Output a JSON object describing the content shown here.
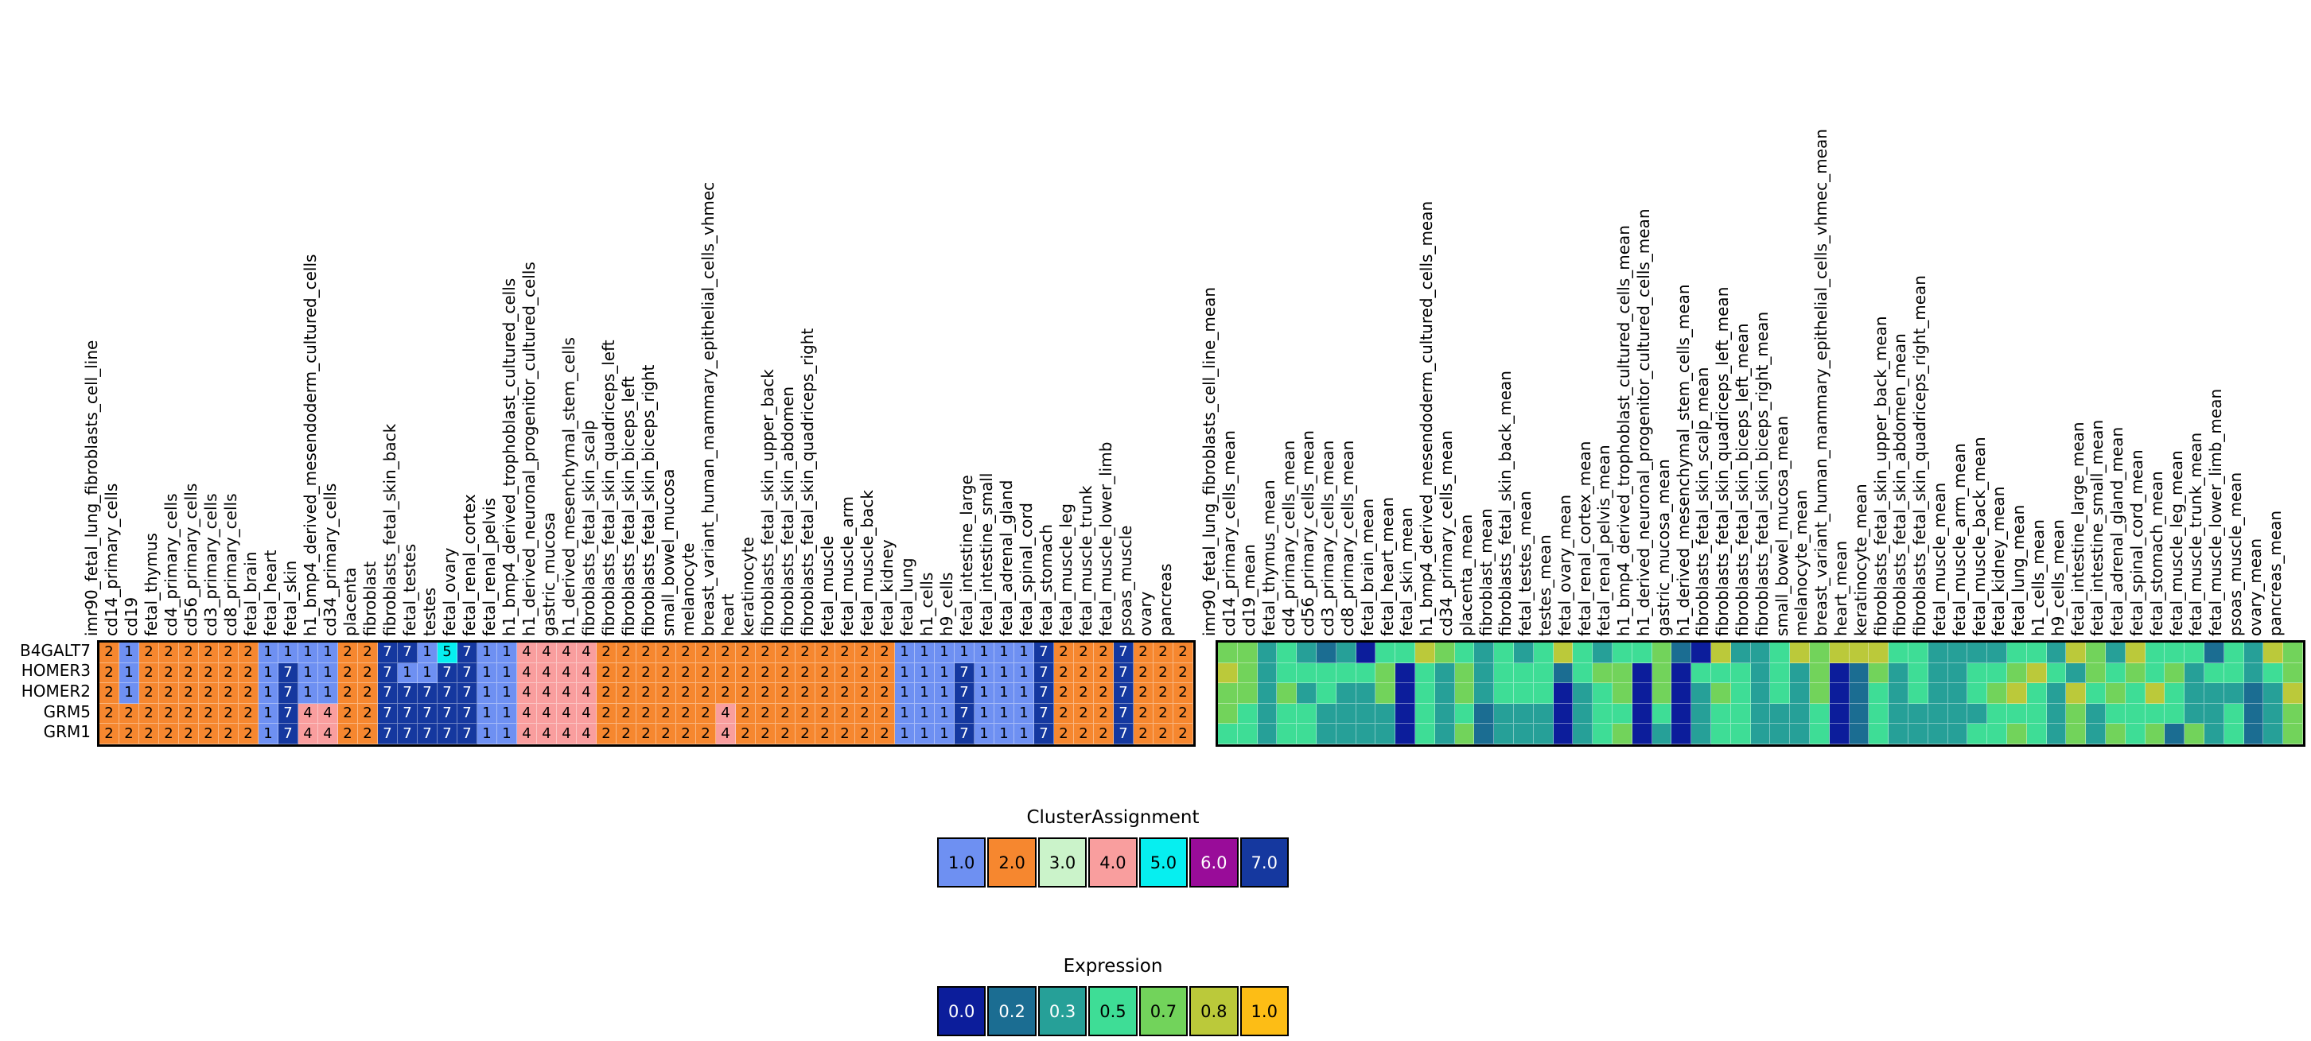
{
  "figure": {
    "description": "Gene by tissue clustered heatmaps",
    "gene_rows": [
      "B4GALT7",
      "HOMER3",
      "HOMER2",
      "GRM5",
      "GRM1"
    ]
  },
  "chart_data": [
    {
      "type": "heatmap",
      "name": "ClusterAssignment",
      "rows": [
        "B4GALT7",
        "HOMER3",
        "HOMER2",
        "GRM5",
        "GRM1"
      ],
      "columns": [
        "imr90_fetal_lung_fibroblasts_cell_line",
        "cd14_primary_cells",
        "cd19",
        "fetal_thymus",
        "cd4_primary_cells",
        "cd56_primary_cells",
        "cd3_primary_cells",
        "cd8_primary_cells",
        "fetal_brain",
        "fetal_heart",
        "fetal_skin",
        "h1_bmp4_derived_mesendoderm_cultured_cells",
        "cd34_primary_cells",
        "placenta",
        "fibroblast",
        "fibroblasts_fetal_skin_back",
        "fetal_testes",
        "testes",
        "fetal_ovary",
        "fetal_renal_cortex",
        "fetal_renal_pelvis",
        "h1_bmp4_derived_trophoblast_cultured_cells",
        "h1_derived_neuronal_progenitor_cultured_cells",
        "gastric_mucosa",
        "h1_derived_mesenchymal_stem_cells",
        "fibroblasts_fetal_skin_scalp",
        "fibroblasts_fetal_skin_quadriceps_left",
        "fibroblasts_fetal_skin_biceps_left",
        "fibroblasts_fetal_skin_biceps_right",
        "small_bowel_mucosa",
        "melanocyte",
        "breast_variant_human_mammary_epithelial_cells_vhmec",
        "heart",
        "keratinocyte",
        "fibroblasts_fetal_skin_upper_back",
        "fibroblasts_fetal_skin_abdomen",
        "fibroblasts_fetal_skin_quadriceps_right",
        "fetal_muscle",
        "fetal_muscle_arm",
        "fetal_muscle_back",
        "fetal_kidney",
        "fetal_lung",
        "h1_cells",
        "h9_cells",
        "fetal_intestine_large",
        "fetal_intestine_small",
        "fetal_adrenal_gland",
        "fetal_spinal_cord",
        "fetal_stomach",
        "fetal_muscle_leg",
        "fetal_muscle_trunk",
        "fetal_muscle_lower_limb",
        "psoas_muscle",
        "ovary",
        "pancreas"
      ],
      "values": [
        [
          2,
          1,
          2,
          2,
          2,
          2,
          2,
          2,
          1,
          1,
          1,
          1,
          2,
          2,
          7,
          7,
          1,
          5,
          7,
          1,
          1,
          4,
          4,
          4,
          4,
          2,
          2,
          2,
          2,
          2,
          2,
          2,
          2,
          2,
          2,
          2,
          2,
          2,
          2,
          2,
          1,
          1,
          1,
          1,
          1,
          1,
          1,
          7,
          2,
          2,
          2,
          7,
          2,
          2,
          2
        ],
        [
          2,
          1,
          2,
          2,
          2,
          2,
          2,
          2,
          1,
          7,
          1,
          1,
          2,
          2,
          7,
          1,
          1,
          7,
          7,
          1,
          1,
          4,
          4,
          4,
          4,
          2,
          2,
          2,
          2,
          2,
          2,
          2,
          2,
          2,
          2,
          2,
          2,
          2,
          2,
          2,
          1,
          1,
          1,
          7,
          1,
          1,
          1,
          7,
          2,
          2,
          2,
          7,
          2,
          2,
          2
        ],
        [
          2,
          1,
          2,
          2,
          2,
          2,
          2,
          2,
          1,
          7,
          1,
          1,
          2,
          2,
          7,
          7,
          7,
          7,
          7,
          1,
          1,
          4,
          4,
          4,
          4,
          2,
          2,
          2,
          2,
          2,
          2,
          2,
          2,
          2,
          2,
          2,
          2,
          2,
          2,
          2,
          1,
          1,
          1,
          7,
          1,
          1,
          1,
          7,
          2,
          2,
          2,
          7,
          2,
          2,
          2
        ],
        [
          2,
          2,
          2,
          2,
          2,
          2,
          2,
          2,
          1,
          7,
          4,
          4,
          2,
          2,
          7,
          7,
          7,
          7,
          7,
          1,
          1,
          4,
          4,
          4,
          4,
          2,
          2,
          2,
          2,
          2,
          2,
          4,
          2,
          2,
          2,
          2,
          2,
          2,
          2,
          2,
          1,
          1,
          1,
          7,
          1,
          1,
          1,
          7,
          2,
          2,
          2,
          7,
          2,
          2,
          2
        ],
        [
          2,
          2,
          2,
          2,
          2,
          2,
          2,
          2,
          1,
          7,
          4,
          4,
          2,
          2,
          7,
          7,
          7,
          7,
          7,
          1,
          1,
          4,
          4,
          4,
          4,
          2,
          2,
          2,
          2,
          2,
          2,
          4,
          2,
          2,
          2,
          2,
          2,
          2,
          2,
          2,
          1,
          1,
          1,
          7,
          1,
          1,
          1,
          7,
          2,
          2,
          2,
          7,
          2,
          2,
          2
        ]
      ],
      "value_colors": {
        "1": "#6e90f2",
        "2": "#f6872f",
        "3": "#cbf3ca",
        "4": "#f99e9e",
        "5": "#06eff0",
        "6": "#990c99",
        "7": "#15389f"
      },
      "value_text_colors": {
        "1": "#000000",
        "2": "#000000",
        "3": "#000000",
        "4": "#000000",
        "5": "#000000",
        "6": "#ffffff",
        "7": "#ffffff"
      },
      "show_cell_text": true,
      "legend": {
        "title": "ClusterAssignment",
        "entries": [
          {
            "label": "1.0",
            "color": "#6e90f2",
            "text_color": "#000000"
          },
          {
            "label": "2.0",
            "color": "#f6872f",
            "text_color": "#000000"
          },
          {
            "label": "3.0",
            "color": "#cbf3ca",
            "text_color": "#000000"
          },
          {
            "label": "4.0",
            "color": "#f99e9e",
            "text_color": "#000000"
          },
          {
            "label": "5.0",
            "color": "#06eff0",
            "text_color": "#000000"
          },
          {
            "label": "6.0",
            "color": "#990c99",
            "text_color": "#ffffff"
          },
          {
            "label": "7.0",
            "color": "#15389f",
            "text_color": "#ffffff"
          }
        ]
      }
    },
    {
      "type": "heatmap",
      "name": "Expression",
      "rows": [
        "B4GALT7",
        "HOMER3",
        "HOMER2",
        "GRM5",
        "GRM1"
      ],
      "columns": [
        "imr90_fetal_lung_fibroblasts_cell_line_mean",
        "cd14_primary_cells_mean",
        "cd19_mean",
        "fetal_thymus_mean",
        "cd4_primary_cells_mean",
        "cd56_primary_cells_mean",
        "cd3_primary_cells_mean",
        "cd8_primary_cells_mean",
        "fetal_brain_mean",
        "fetal_heart_mean",
        "fetal_skin_mean",
        "h1_bmp4_derived_mesendoderm_cultured_cells_mean",
        "cd34_primary_cells_mean",
        "placenta_mean",
        "fibroblast_mean",
        "fibroblasts_fetal_skin_back_mean",
        "fetal_testes_mean",
        "testes_mean",
        "fetal_ovary_mean",
        "fetal_renal_cortex_mean",
        "fetal_renal_pelvis_mean",
        "h1_bmp4_derived_trophoblast_cultured_cells_mean",
        "h1_derived_neuronal_progenitor_cultured_cells_mean",
        "gastric_mucosa_mean",
        "h1_derived_mesenchymal_stem_cells_mean",
        "fibroblasts_fetal_skin_scalp_mean",
        "fibroblasts_fetal_skin_quadriceps_left_mean",
        "fibroblasts_fetal_skin_biceps_left_mean",
        "fibroblasts_fetal_skin_biceps_right_mean",
        "small_bowel_mucosa_mean",
        "melanocyte_mean",
        "breast_variant_human_mammary_epithelial_cells_vhmec_mean",
        "heart_mean",
        "keratinocyte_mean",
        "fibroblasts_fetal_skin_upper_back_mean",
        "fibroblasts_fetal_skin_abdomen_mean",
        "fibroblasts_fetal_skin_quadriceps_right_mean",
        "fetal_muscle_mean",
        "fetal_muscle_arm_mean",
        "fetal_muscle_back_mean",
        "fetal_kidney_mean",
        "fetal_lung_mean",
        "h1_cells_mean",
        "h9_cells_mean",
        "fetal_intestine_large_mean",
        "fetal_intestine_small_mean",
        "fetal_adrenal_gland_mean",
        "fetal_spinal_cord_mean",
        "fetal_stomach_mean",
        "fetal_muscle_leg_mean",
        "fetal_muscle_trunk_mean",
        "fetal_muscle_lower_limb_mean",
        "psoas_muscle_mean",
        "ovary_mean",
        "pancreas_mean"
      ],
      "values": [
        [
          0.7,
          0.7,
          0.3,
          0.5,
          0.3,
          0.2,
          0.3,
          0.0,
          0.5,
          0.5,
          0.8,
          0.7,
          0.5,
          0.3,
          0.5,
          0.3,
          0.5,
          0.8,
          0.5,
          0.3,
          0.5,
          0.5,
          0.7,
          0.2,
          0.0,
          0.8,
          0.3,
          0.3,
          0.5,
          0.8,
          0.7,
          0.8,
          0.8,
          0.8,
          0.5,
          0.5,
          0.3,
          0.3,
          0.3,
          0.3,
          0.5,
          0.5,
          0.3,
          0.8,
          0.7,
          0.3,
          0.8,
          0.5,
          0.5,
          0.5,
          0.2,
          0.5,
          0.3,
          0.8,
          0.7
        ],
        [
          0.8,
          0.7,
          0.3,
          0.5,
          0.5,
          0.5,
          0.5,
          0.5,
          0.7,
          0.0,
          0.5,
          0.3,
          0.7,
          0.3,
          0.5,
          0.5,
          0.5,
          0.2,
          0.5,
          0.7,
          0.7,
          0.0,
          0.7,
          0.0,
          0.5,
          0.5,
          0.5,
          0.3,
          0.5,
          0.3,
          0.7,
          0.0,
          0.2,
          0.7,
          0.3,
          0.5,
          0.3,
          0.3,
          0.5,
          0.5,
          0.7,
          0.8,
          0.5,
          0.3,
          0.7,
          0.5,
          0.7,
          0.5,
          0.7,
          0.3,
          0.5,
          0.5,
          0.3,
          0.5,
          0.7
        ],
        [
          0.7,
          0.7,
          0.3,
          0.7,
          0.3,
          0.5,
          0.3,
          0.3,
          0.7,
          0.0,
          0.5,
          0.3,
          0.7,
          0.3,
          0.5,
          0.5,
          0.5,
          0.0,
          0.3,
          0.5,
          0.7,
          0.0,
          0.7,
          0.0,
          0.3,
          0.7,
          0.5,
          0.3,
          0.5,
          0.3,
          0.7,
          0.0,
          0.2,
          0.5,
          0.3,
          0.5,
          0.3,
          0.3,
          0.5,
          0.7,
          0.8,
          0.5,
          0.3,
          0.8,
          0.5,
          0.7,
          0.5,
          0.8,
          0.5,
          0.3,
          0.3,
          0.3,
          0.2,
          0.3,
          0.8
        ],
        [
          0.7,
          0.5,
          0.3,
          0.5,
          0.5,
          0.3,
          0.3,
          0.3,
          0.3,
          0.0,
          0.5,
          0.3,
          0.5,
          0.2,
          0.3,
          0.3,
          0.3,
          0.0,
          0.3,
          0.5,
          0.5,
          0.0,
          0.5,
          0.0,
          0.3,
          0.5,
          0.5,
          0.3,
          0.3,
          0.3,
          0.5,
          0.0,
          0.2,
          0.5,
          0.3,
          0.3,
          0.3,
          0.3,
          0.3,
          0.5,
          0.5,
          0.5,
          0.3,
          0.7,
          0.3,
          0.5,
          0.5,
          0.5,
          0.5,
          0.3,
          0.3,
          0.5,
          0.2,
          0.3,
          0.7
        ],
        [
          0.5,
          0.5,
          0.3,
          0.5,
          0.5,
          0.3,
          0.3,
          0.3,
          0.3,
          0.0,
          0.5,
          0.3,
          0.7,
          0.2,
          0.3,
          0.3,
          0.3,
          0.0,
          0.3,
          0.5,
          0.7,
          0.0,
          0.3,
          0.0,
          0.3,
          0.5,
          0.5,
          0.3,
          0.3,
          0.3,
          0.5,
          0.0,
          0.2,
          0.5,
          0.3,
          0.3,
          0.3,
          0.3,
          0.5,
          0.5,
          0.7,
          0.5,
          0.3,
          0.7,
          0.3,
          0.7,
          0.5,
          0.7,
          0.2,
          0.7,
          0.3,
          0.5,
          0.2,
          0.3,
          0.7
        ]
      ],
      "value_colors": {
        "0": "#0c1d9b",
        "0.2": "#1b6d92",
        "0.3": "#26a098",
        "0.5": "#3edd96",
        "0.7": "#72d35b",
        "0.8": "#bbc93a",
        "1": "#fdbd15"
      },
      "show_cell_text": false,
      "legend": {
        "title": "Expression",
        "entries": [
          {
            "label": "0.0",
            "color": "#0c1d9b",
            "text_color": "#ffffff"
          },
          {
            "label": "0.2",
            "color": "#1b6d92",
            "text_color": "#ffffff"
          },
          {
            "label": "0.3",
            "color": "#26a098",
            "text_color": "#ffffff"
          },
          {
            "label": "0.5",
            "color": "#3edd96",
            "text_color": "#000000"
          },
          {
            "label": "0.7",
            "color": "#72d35b",
            "text_color": "#000000"
          },
          {
            "label": "0.8",
            "color": "#bbc93a",
            "text_color": "#000000"
          },
          {
            "label": "1.0",
            "color": "#fdbd15",
            "text_color": "#000000"
          }
        ]
      }
    }
  ]
}
